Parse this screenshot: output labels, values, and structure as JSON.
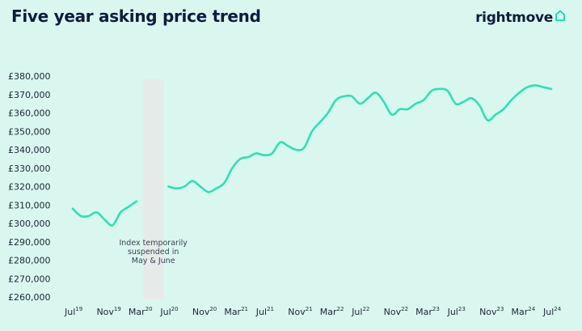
{
  "header": {
    "title": "Five year asking price trend",
    "brand": "rightmove",
    "brand_icon": "house-icon",
    "brand_color": "#00deb6"
  },
  "colors": {
    "background": "#d9f7ef",
    "line": "#2ee0b6",
    "gap_band": "#e6ebe9",
    "text": "#0e1b3d"
  },
  "chart_data": {
    "type": "line",
    "title": "Five year asking price trend",
    "xlabel": "",
    "ylabel": "",
    "ylim": [
      260000,
      380000
    ],
    "y_ticks": [
      "£260,000",
      "£270,000",
      "£280,000",
      "£290,000",
      "£300,000",
      "£310,000",
      "£320,000",
      "£330,000",
      "£340,000",
      "£350,000",
      "£360,000",
      "£370,000",
      "£380,000"
    ],
    "x_ticks": [
      {
        "m": "Jul",
        "y": "19"
      },
      {
        "m": "Nov",
        "y": "19"
      },
      {
        "m": "Mar",
        "y": "20"
      },
      {
        "m": "Jul",
        "y": "20"
      },
      {
        "m": "Nov",
        "y": "20"
      },
      {
        "m": "Mar",
        "y": "21"
      },
      {
        "m": "Jul",
        "y": "21"
      },
      {
        "m": "Nov",
        "y": "21"
      },
      {
        "m": "Mar",
        "y": "22"
      },
      {
        "m": "Jul",
        "y": "22"
      },
      {
        "m": "Nov",
        "y": "22"
      },
      {
        "m": "Mar",
        "y": "23"
      },
      {
        "m": "Jul",
        "y": "23"
      },
      {
        "m": "Nov",
        "y": "23"
      },
      {
        "m": "Mar",
        "y": "24"
      },
      {
        "m": "Jul",
        "y": "24"
      }
    ],
    "gap": {
      "from": "Apr 2020",
      "to": "Jun 2020"
    },
    "annotation": "Index temporarily suspended in May & June",
    "series": [
      {
        "segments": [
          [
            [
              "Jul 2019",
              308000
            ],
            [
              "Aug 2019",
              304000
            ],
            [
              "Sep 2019",
              304000
            ],
            [
              "Oct 2019",
              306000
            ],
            [
              "Nov 2019",
              302000
            ],
            [
              "Dec 2019",
              299000
            ],
            [
              "Jan 2020",
              306000
            ],
            [
              "Feb 2020",
              309000
            ],
            [
              "Mar 2020",
              312000
            ]
          ],
          [
            [
              "Jul 2020",
              320000
            ],
            [
              "Aug 2020",
              319000
            ],
            [
              "Sep 2020",
              320000
            ],
            [
              "Oct 2020",
              323000
            ],
            [
              "Nov 2020",
              320000
            ],
            [
              "Dec 2020",
              317000
            ],
            [
              "Jan 2021",
              319000
            ],
            [
              "Feb 2021",
              322000
            ],
            [
              "Mar 2021",
              330000
            ],
            [
              "Apr 2021",
              335000
            ],
            [
              "May 2021",
              336000
            ],
            [
              "Jun 2021",
              338000
            ],
            [
              "Jul 2021",
              337000
            ],
            [
              "Aug 2021",
              338000
            ],
            [
              "Sep 2021",
              344000
            ],
            [
              "Oct 2021",
              342000
            ],
            [
              "Nov 2021",
              340000
            ],
            [
              "Dec 2021",
              341000
            ],
            [
              "Jan 2022",
              350000
            ],
            [
              "Feb 2022",
              355000
            ],
            [
              "Mar 2022",
              360000
            ],
            [
              "Apr 2022",
              367000
            ],
            [
              "May 2022",
              369000
            ],
            [
              "Jun 2022",
              369000
            ],
            [
              "Jul 2022",
              365000
            ],
            [
              "Aug 2022",
              368000
            ],
            [
              "Sep 2022",
              371000
            ],
            [
              "Oct 2022",
              366000
            ],
            [
              "Nov 2022",
              359000
            ],
            [
              "Dec 2022",
              362000
            ],
            [
              "Jan 2023",
              362000
            ],
            [
              "Feb 2023",
              365000
            ],
            [
              "Mar 2023",
              367000
            ],
            [
              "Apr 2023",
              372000
            ],
            [
              "May 2023",
              373000
            ],
            [
              "Jun 2023",
              372000
            ],
            [
              "Jul 2023",
              365000
            ],
            [
              "Aug 2023",
              366000
            ],
            [
              "Sep 2023",
              368000
            ],
            [
              "Oct 2023",
              364000
            ],
            [
              "Nov 2023",
              356000
            ],
            [
              "Dec 2023",
              359000
            ],
            [
              "Jan 2024",
              362000
            ],
            [
              "Feb 2024",
              367000
            ],
            [
              "Mar 2024",
              371000
            ],
            [
              "Apr 2024",
              374000
            ],
            [
              "May 2024",
              375000
            ],
            [
              "Jun 2024",
              374000
            ],
            [
              "Jul 2024",
              373000
            ]
          ]
        ]
      }
    ]
  }
}
